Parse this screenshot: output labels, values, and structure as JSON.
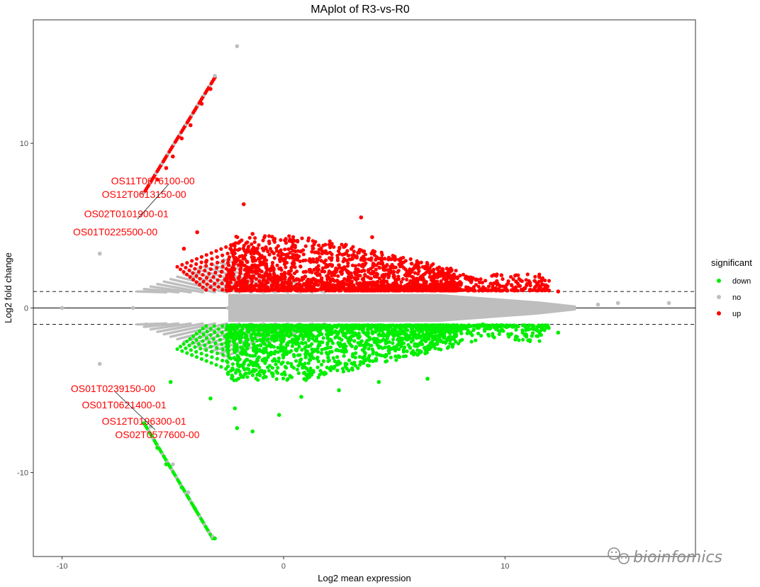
{
  "chart_data": {
    "type": "scatter",
    "title": "MAplot of R3-vs-R0",
    "xlabel": "Log2 mean expression",
    "ylabel": "Log2 fold change",
    "xlim": [
      -11.3,
      18.6
    ],
    "ylim": [
      -15.1,
      17.5
    ],
    "xticks": [
      -10,
      0,
      10
    ],
    "yticks": [
      -10,
      0,
      10
    ],
    "grid": false,
    "hlines": [
      {
        "y": 0,
        "style": "solid"
      },
      {
        "y": 1,
        "style": "dashed"
      },
      {
        "y": -1,
        "style": "dashed"
      }
    ],
    "legend": {
      "title": "significant",
      "position": "right",
      "entries": [
        {
          "label": "down",
          "color": "#00ee00"
        },
        {
          "label": "no",
          "color": "#bebebe"
        },
        {
          "label": "up",
          "color": "#ff0000"
        }
      ]
    },
    "series": [
      {
        "name": "up",
        "color": "#ff0000",
        "points": [
          [
            -5.0,
            9.2
          ],
          [
            -4.6,
            10.3
          ],
          [
            -4.2,
            11.1
          ],
          [
            -3.7,
            12.4
          ],
          [
            -3.3,
            13.3
          ],
          [
            -5.7,
            7.8
          ],
          [
            -5.3,
            8.5
          ],
          [
            -3.9,
            4.6
          ],
          [
            -4.5,
            3.6
          ],
          [
            -3.5,
            2.8
          ],
          [
            -2.8,
            2.2
          ],
          [
            -2.4,
            3.6
          ],
          [
            -1.8,
            6.3
          ],
          [
            -1.4,
            4.5
          ],
          [
            0.5,
            3.2
          ],
          [
            1.5,
            2.8
          ],
          [
            3.5,
            5.5
          ],
          [
            4.0,
            4.3
          ],
          [
            5.3,
            3.0
          ],
          [
            6.4,
            2.5
          ],
          [
            7.5,
            2.2
          ],
          [
            8.4,
            1.8
          ],
          [
            9.5,
            2.0
          ],
          [
            10.5,
            1.6
          ],
          [
            11.6,
            1.1
          ],
          [
            12.4,
            1.0
          ],
          [
            -2.0,
            1.6
          ],
          [
            -1.0,
            1.9
          ],
          [
            0.0,
            1.4
          ],
          [
            2.0,
            1.8
          ],
          [
            3.0,
            1.5
          ],
          [
            5.0,
            1.4
          ],
          [
            6.0,
            1.6
          ],
          [
            7.0,
            1.3
          ],
          [
            8.0,
            1.4
          ],
          [
            -1.3,
            2.6
          ],
          [
            1.0,
            2.2
          ],
          [
            2.5,
            2.6
          ],
          [
            4.5,
            2.0
          ]
        ]
      },
      {
        "name": "no",
        "color": "#bebebe",
        "points": [
          [
            -2.1,
            15.9
          ],
          [
            -3.1,
            14.1
          ],
          [
            -6.4,
            7.0
          ],
          [
            -8.3,
            3.3
          ],
          [
            -10.0,
            0.0
          ],
          [
            -6.8,
            0.0
          ],
          [
            -6.2,
            -1.0
          ],
          [
            -8.3,
            -3.4
          ],
          [
            -6.0,
            -7.2
          ],
          [
            -5.0,
            -9.5
          ],
          [
            -4.3,
            -11.2
          ],
          [
            -3.2,
            -13.9
          ],
          [
            14.2,
            0.2
          ],
          [
            15.1,
            0.3
          ],
          [
            17.4,
            0.3
          ],
          [
            13.0,
            0.0
          ],
          [
            -2.5,
            0.0
          ],
          [
            0.0,
            0.0
          ],
          [
            3.0,
            0.0
          ],
          [
            6.0,
            0.0
          ],
          [
            9.0,
            0.0
          ],
          [
            11.0,
            0.0
          ],
          [
            2.0,
            0.6
          ],
          [
            -1.0,
            -0.6
          ],
          [
            4.0,
            0.7
          ],
          [
            7.5,
            -0.5
          ]
        ]
      },
      {
        "name": "down",
        "color": "#00ee00",
        "points": [
          [
            -6.3,
            -7.0
          ],
          [
            -5.7,
            -8.5
          ],
          [
            -5.3,
            -9.5
          ],
          [
            -4.6,
            -10.9
          ],
          [
            -4.0,
            -12.2
          ],
          [
            -3.1,
            -14.0
          ],
          [
            -5.1,
            -4.5
          ],
          [
            -3.3,
            -5.5
          ],
          [
            -2.2,
            -6.1
          ],
          [
            -2.1,
            -7.3
          ],
          [
            -1.4,
            -7.5
          ],
          [
            -0.2,
            -6.5
          ],
          [
            0.8,
            -5.4
          ],
          [
            2.5,
            -5.0
          ],
          [
            4.3,
            -4.5
          ],
          [
            6.5,
            -4.3
          ],
          [
            9.0,
            -1.0
          ],
          [
            12.4,
            -1.5
          ],
          [
            -1.0,
            -2.0
          ],
          [
            0.0,
            -2.4
          ],
          [
            1.5,
            -2.0
          ],
          [
            3.0,
            -1.8
          ],
          [
            5.0,
            -1.4
          ],
          [
            7.0,
            -1.3
          ],
          [
            8.0,
            -1.2
          ],
          [
            -1.8,
            -3.4
          ],
          [
            -0.5,
            -4.0
          ],
          [
            1.0,
            -3.0
          ],
          [
            2.0,
            -2.8
          ]
        ]
      }
    ],
    "labels": [
      {
        "text": "OS11T0676100-00",
        "x": -5.9,
        "y": 7.5
      },
      {
        "text": "OS12T0613150-00",
        "x": -6.3,
        "y": 6.7
      },
      {
        "text": "OS02T0101900-01",
        "x": -7.1,
        "y": 5.5
      },
      {
        "text": "OS01T0225500-00",
        "x": -7.6,
        "y": 4.4
      },
      {
        "text": "OS01T0239150-00",
        "x": -7.7,
        "y": -5.1
      },
      {
        "text": "OS01T0621400-01",
        "x": -7.2,
        "y": -6.1
      },
      {
        "text": "OS12T0196300-01",
        "x": -6.3,
        "y": -7.1
      },
      {
        "text": "OS02T0577600-00",
        "x": -5.7,
        "y": -7.9
      }
    ]
  },
  "watermark": "bioinfomics"
}
